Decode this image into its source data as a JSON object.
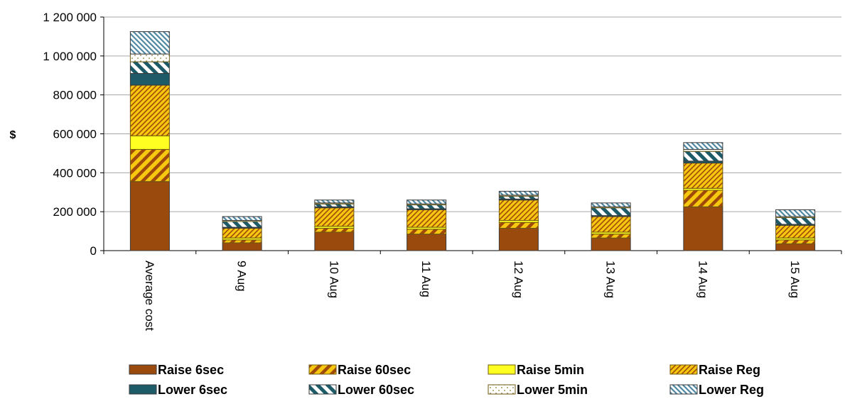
{
  "chart_data": {
    "type": "bar",
    "stacked": true,
    "title": "",
    "xlabel": "",
    "ylabel": "$",
    "ylim": [
      0,
      1200000
    ],
    "yticks": [
      0,
      200000,
      400000,
      600000,
      800000,
      1000000,
      1200000
    ],
    "ytick_labels": [
      "0",
      "200 000",
      "400 000",
      "600 000",
      "800 000",
      "1 000 000",
      "1 200 000"
    ],
    "grid": true,
    "legend_position": "bottom",
    "categories": [
      "Average cost",
      "9 Aug",
      "10 Aug",
      "11 Aug",
      "12 Aug",
      "13 Aug",
      "14 Aug",
      "15 Aug"
    ],
    "series": [
      {
        "name": "Raise 6sec",
        "color": "#9a4a0c",
        "pattern": "solid",
        "values": [
          355000,
          40000,
          95000,
          85000,
          115000,
          65000,
          225000,
          35000
        ]
      },
      {
        "name": "Raise 60sec",
        "color": "#f2c012",
        "pattern": "bold-stripes",
        "values": [
          165000,
          15000,
          20000,
          25000,
          30000,
          20000,
          85000,
          20000
        ]
      },
      {
        "name": "Raise 5min",
        "color": "#ffff22",
        "pattern": "solid",
        "values": [
          70000,
          10000,
          10000,
          10000,
          10000,
          10000,
          10000,
          10000
        ]
      },
      {
        "name": "Raise Reg",
        "color": "#f2c012",
        "pattern": "fine-stripes",
        "values": [
          260000,
          50000,
          95000,
          90000,
          105000,
          80000,
          130000,
          65000
        ]
      },
      {
        "name": "Lower 6sec",
        "color": "#1e5b68",
        "pattern": "solid",
        "values": [
          60000,
          5000,
          5000,
          5000,
          5000,
          5000,
          10000,
          5000
        ]
      },
      {
        "name": "Lower 60sec",
        "color": "#1e5b68",
        "pattern": "bold-stripes",
        "values": [
          60000,
          30000,
          15000,
          20000,
          15000,
          40000,
          50000,
          35000
        ]
      },
      {
        "name": "Lower 5min",
        "color": "#ffffff",
        "pattern": "dots",
        "values": [
          40000,
          5000,
          5000,
          5000,
          5000,
          5000,
          10000,
          5000
        ]
      },
      {
        "name": "Lower Reg",
        "color": "#5a90a8",
        "pattern": "fine-stripes",
        "values": [
          115000,
          20000,
          15000,
          20000,
          20000,
          20000,
          35000,
          35000
        ]
      }
    ]
  }
}
